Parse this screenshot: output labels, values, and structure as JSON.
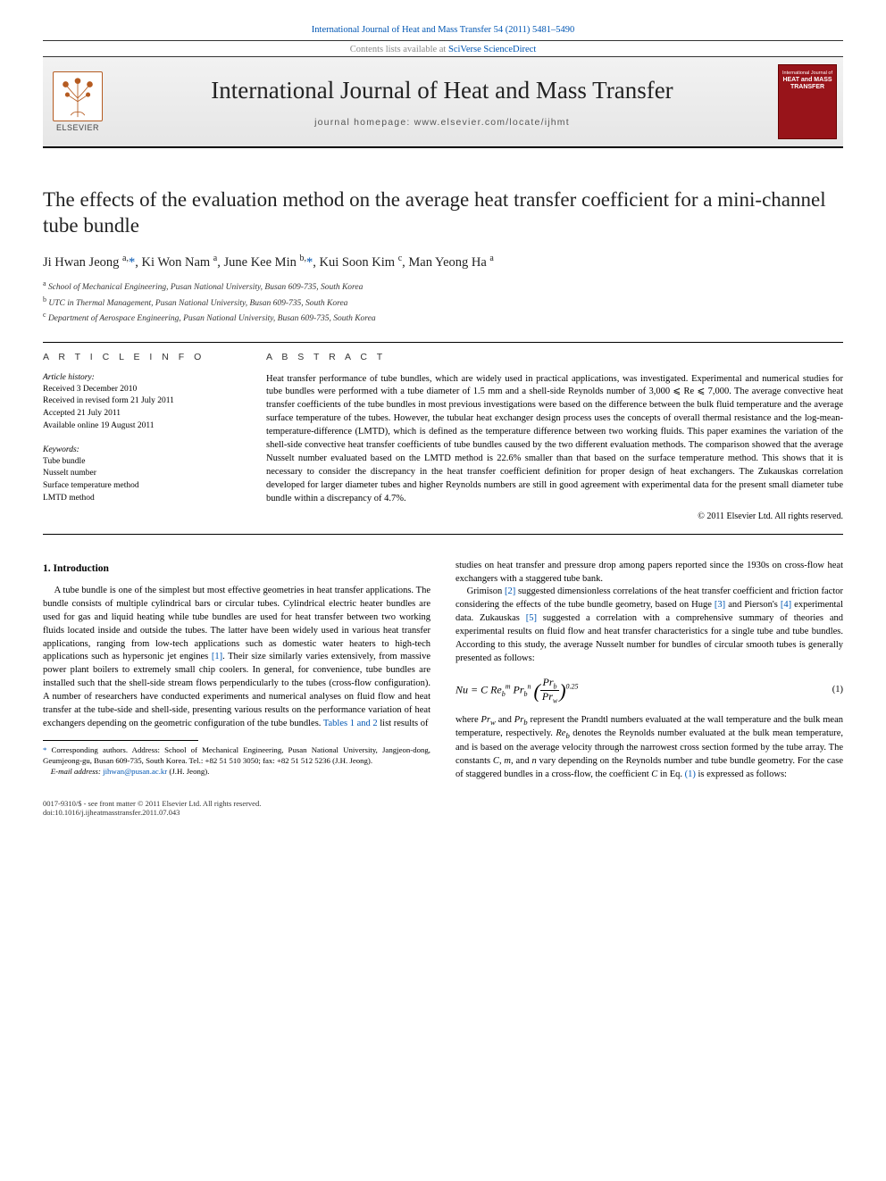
{
  "colors": {
    "link": "#0056b3",
    "text": "#000000",
    "muted": "#888888",
    "brand_red": "#98141a",
    "elsevier_orange": "#b55b21"
  },
  "typography": {
    "body_font": "Georgia, 'Times New Roman', serif",
    "sans_font": "Arial, sans-serif",
    "body_size_pt": 10.5,
    "title_size_pt": 23,
    "journal_title_size_pt": 27
  },
  "header": {
    "citation": "International Journal of Heat and Mass Transfer 54 (2011) 5481–5490",
    "contents_line_prefix": "Contents lists available at ",
    "contents_line_link": "SciVerse ScienceDirect",
    "journal_title": "International Journal of Heat and Mass Transfer",
    "homepage_prefix": "journal homepage: ",
    "homepage_url": "www.elsevier.com/locate/ijhmt",
    "publisher_word": "ELSEVIER",
    "cover_text_small": "International Journal of",
    "cover_text_big": "HEAT and MASS\nTRANSFER"
  },
  "paper": {
    "title": "The effects of the evaluation method on the average heat transfer coefficient for a mini-channel tube bundle",
    "authors_html": "Ji Hwan Jeong <sup>a,</sup><span class=\"corr-ast\">*</span>, Ki Won Nam <sup>a</sup>, June Kee Min <sup>b,</sup><span class=\"corr-ast\">*</span>, Kui Soon Kim <sup>c</sup>, Man Yeong Ha <sup>a</sup>",
    "affiliations": [
      {
        "sup": "a",
        "text": "School of Mechanical Engineering, Pusan National University, Busan 609-735, South Korea"
      },
      {
        "sup": "b",
        "text": "UTC in Thermal Management, Pusan National University, Busan 609-735, South Korea"
      },
      {
        "sup": "c",
        "text": "Department of Aerospace Engineering, Pusan National University, Busan 609-735, South Korea"
      }
    ]
  },
  "article_info": {
    "section_label": "A R T I C L E   I N F O",
    "history_label": "Article history:",
    "history": [
      "Received 3 December 2010",
      "Received in revised form 21 July 2011",
      "Accepted 21 July 2011",
      "Available online 19 August 2011"
    ],
    "keywords_label": "Keywords:",
    "keywords": [
      "Tube bundle",
      "Nusselt number",
      "Surface temperature method",
      "LMTD method"
    ]
  },
  "abstract": {
    "section_label": "A B S T R A C T",
    "text": "Heat transfer performance of tube bundles, which are widely used in practical applications, was investigated. Experimental and numerical studies for tube bundles were performed with a tube diameter of 1.5 mm and a shell-side Reynolds number of 3,000 ⩽ Re ⩽ 7,000. The average convective heat transfer coefficients of the tube bundles in most previous investigations were based on the difference between the bulk fluid temperature and the average surface temperature of the tubes. However, the tubular heat exchanger design process uses the concepts of overall thermal resistance and the log-mean-temperature-difference (LMTD), which is defined as the temperature difference between two working fluids. This paper examines the variation of the shell-side convective heat transfer coefficients of tube bundles caused by the two different evaluation methods. The comparison showed that the average Nusselt number evaluated based on the LMTD method is 22.6% smaller than that based on the surface temperature method. This shows that it is necessary to consider the discrepancy in the heat transfer coefficient definition for proper design of heat exchangers. The Zukauskas correlation developed for larger diameter tubes and higher Reynolds numbers are still in good agreement with experimental data for the present small diameter tube bundle within a discrepancy of 4.7%.",
    "copyright": "© 2011 Elsevier Ltd. All rights reserved."
  },
  "body": {
    "intro_heading": "1. Introduction",
    "p1": "A tube bundle is one of the simplest but most effective geometries in heat transfer applications. The bundle consists of multiple cylindrical bars or circular tubes. Cylindrical electric heater bundles are used for gas and liquid heating while tube bundles are used for heat transfer between two working fluids located inside and outside the tubes. The latter have been widely used in various heat transfer applications, ranging from low-tech applications such as domestic water heaters to high-tech applications such as hypersonic jet engines ",
    "ref1": "[1]",
    "p1b": ". Their size similarly varies extensively, from massive power plant boilers to extremely small chip coolers. In general, for convenience, tube bundles are installed such that the shell-side stream flows perpendicularly to the tubes (cross-flow configuration). A number of researchers have conducted experiments and numerical analyses on fluid flow and heat transfer at the tube-side and shell-side, presenting various results on the performance variation of heat exchangers depending on the geometric configuration of the tube bundles. ",
    "tables_ref": "Tables 1 and 2",
    "p1c": " list results of ",
    "p2a": "studies on heat transfer and pressure drop among papers reported since the 1930s on cross-flow heat exchangers with a staggered tube bank.",
    "p3a": "Grimison ",
    "ref2": "[2]",
    "p3b": " suggested dimensionless correlations of the heat transfer coefficient and friction factor considering the effects of the tube bundle geometry, based on Huge ",
    "ref3": "[3]",
    "p3c": " and Pierson's ",
    "ref4": "[4]",
    "p3d": " experimental data. Zukauskas ",
    "ref5": "[5]",
    "p3e": " suggested a correlation with a comprehensive summary of theories and experimental results on fluid flow and heat transfer characteristics for a single tube and tube bundles. According to this study, the average Nusselt number for bundles of circular smooth tubes is generally presented as follows:",
    "eq1_num": "(1)",
    "p4a": "where ",
    "prw": "Pr_w",
    "p4b": " and ",
    "prb": "Pr_b",
    "p4c": " represent the Prandtl numbers evaluated at the wall temperature and the bulk mean temperature, respectively. ",
    "reb": "Re_b",
    "p4d": " denotes the Reynolds number evaluated at the bulk mean temperature, and is based on the average velocity through the narrowest cross section formed by the tube array. The constants ",
    "const_c": "C",
    "p4e": ", ",
    "const_m": "m",
    "p4f": ", and ",
    "const_n": "n",
    "p4g": " vary depending on the Reynolds number and tube bundle geometry. For the case of staggered bundles in a cross-flow, the coefficient ",
    "p4h": " in Eq. ",
    "eq1_ref": "(1)",
    "p4i": " is expressed as follows:"
  },
  "footnote": {
    "marker": "*",
    "text": " Corresponding authors. Address: School of Mechanical Engineering, Pusan National University, Jangjeon-dong, Geumjeong-gu, Busan 609-735, South Korea. Tel.: +82 51 510 3050; fax: +82 51 512 5236 (J.H. Jeong).",
    "email_label": "E-mail address: ",
    "email": "jihwan@pusan.ac.kr",
    "email_tail": " (J.H. Jeong)."
  },
  "footer": {
    "line1": "0017-9310/$ - see front matter © 2011 Elsevier Ltd. All rights reserved.",
    "line2": "doi:10.1016/j.ijheatmasstransfer.2011.07.043"
  }
}
